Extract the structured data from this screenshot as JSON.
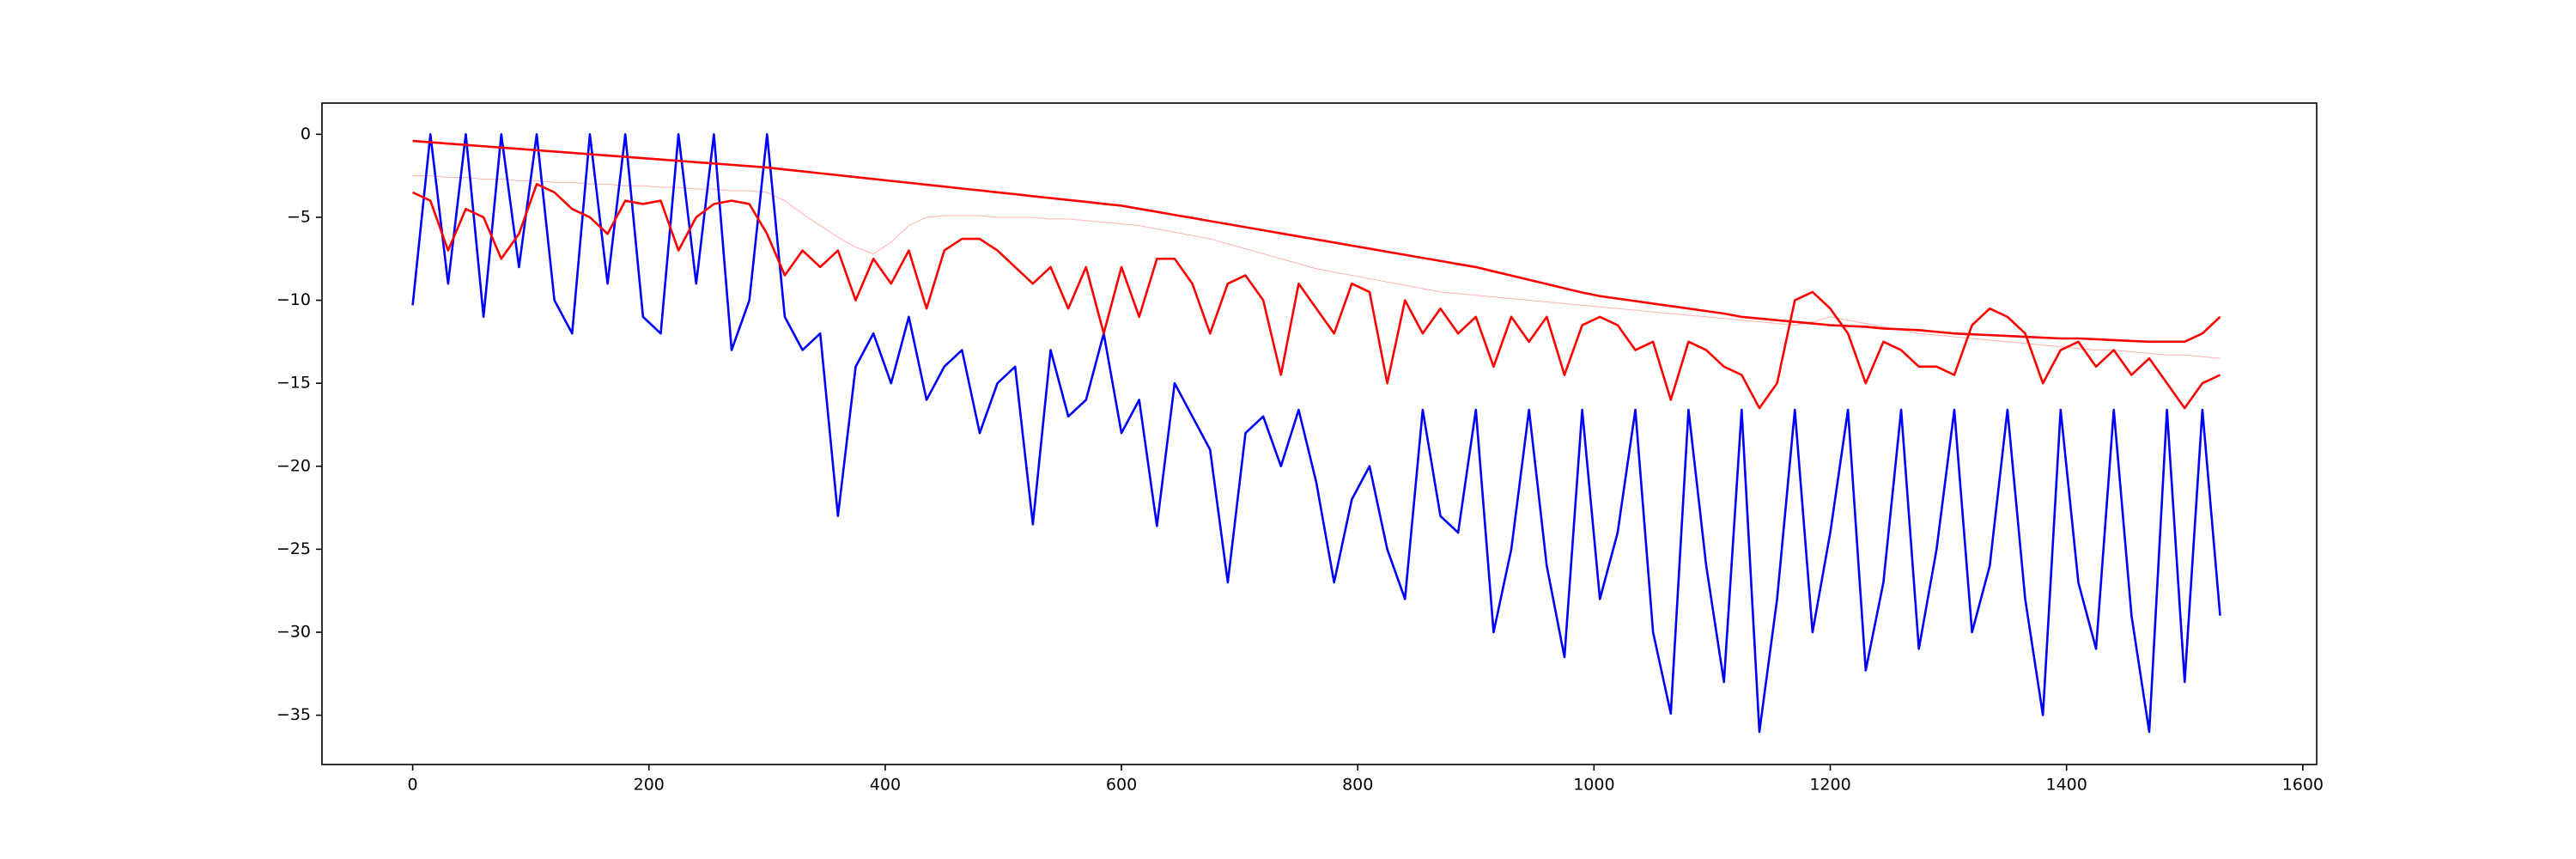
{
  "chart_data": {
    "type": "line",
    "x": [
      0,
      15,
      30,
      45,
      60,
      75,
      90,
      105,
      120,
      135,
      150,
      165,
      180,
      195,
      210,
      225,
      240,
      255,
      270,
      285,
      300,
      315,
      330,
      345,
      360,
      375,
      390,
      405,
      420,
      435,
      450,
      465,
      480,
      495,
      510,
      525,
      540,
      555,
      570,
      585,
      600,
      615,
      630,
      645,
      660,
      675,
      690,
      705,
      720,
      735,
      750,
      765,
      780,
      795,
      810,
      825,
      840,
      855,
      870,
      885,
      900,
      915,
      930,
      945,
      960,
      975,
      990,
      1005,
      1020,
      1035,
      1050,
      1065,
      1080,
      1095,
      1110,
      1125,
      1140,
      1155,
      1170,
      1185,
      1200,
      1215,
      1230,
      1245,
      1260,
      1275,
      1290,
      1305,
      1320,
      1335,
      1350,
      1365,
      1380,
      1395,
      1410,
      1425,
      1440,
      1455,
      1470,
      1485,
      1500,
      1515,
      1530
    ],
    "series": [
      {
        "color": "#ffb0b0",
        "width": 1,
        "values": [
          -2.5,
          -2.5,
          -2.6,
          -2.6,
          -2.7,
          -2.7,
          -2.8,
          -2.8,
          -2.9,
          -2.9,
          -3.0,
          -3.0,
          -3.1,
          -3.1,
          -3.2,
          -3.2,
          -3.3,
          -3.3,
          -3.4,
          -3.4,
          -3.5,
          -4,
          -4.8,
          -5.5,
          -6.2,
          -6.8,
          -7.2,
          -6.5,
          -5.5,
          -5,
          -4.9,
          -4.9,
          -4.9,
          -5,
          -5,
          -5,
          -5.1,
          -5.1,
          -5.2,
          -5.3,
          -5.4,
          -5.5,
          -5.7,
          -5.9,
          -6.1,
          -6.3,
          -6.6,
          -6.9,
          -7.2,
          -7.5,
          -7.8,
          -8.1,
          -8.3,
          -8.5,
          -8.7,
          -8.9,
          -9.1,
          -9.3,
          -9.5,
          -9.6,
          -9.7,
          -9.8,
          -9.9,
          -10,
          -10.1,
          -10.2,
          -10.3,
          -10.4,
          -10.5,
          -10.6,
          -10.7,
          -10.8,
          -10.9,
          -11,
          -11.1,
          -11.2,
          -11.3,
          -11.4,
          -11.5,
          -11.3,
          -11,
          -11.2,
          -11.4,
          -11.6,
          -11.8,
          -12,
          -12.1,
          -12.2,
          -12.3,
          -12.4,
          -12.5,
          -12.6,
          -12.7,
          -12.8,
          -12.9,
          -13,
          -13,
          -13.1,
          -13.2,
          -13.3,
          -13.3,
          -13.4,
          -13.5
        ]
      },
      {
        "color": "#0000ff",
        "width": 2.6,
        "values": [
          -10.3,
          0,
          -9,
          0,
          -11,
          0,
          -8,
          0,
          -10,
          -12,
          0,
          -9,
          0,
          -11,
          -12,
          0,
          -9,
          0,
          -13,
          -10,
          0,
          -11,
          -13,
          -12,
          -23,
          -14,
          -12,
          -15,
          -11,
          -16,
          -14,
          -13,
          -18,
          -15,
          -14,
          -23.5,
          -13,
          -17,
          -16,
          -12,
          -18,
          -16,
          -23.6,
          -15,
          -17,
          -19,
          -27,
          -18,
          -17,
          -20,
          -16.6,
          -21,
          -27,
          -22,
          -20,
          -25,
          -28,
          -16.6,
          -23,
          -24,
          -16.6,
          -30,
          -25,
          -16.6,
          -26,
          -31.5,
          -16.6,
          -28,
          -24,
          -16.6,
          -30,
          -34.9,
          -16.6,
          -26,
          -33,
          -16.6,
          -36,
          -28,
          -16.6,
          -30,
          -24,
          -16.6,
          -32.3,
          -27,
          -16.6,
          -31,
          -25,
          -16.6,
          -30,
          -26,
          -16.6,
          -28,
          -35,
          -16.6,
          -27,
          -31,
          -16.6,
          -29,
          -36,
          -16.6,
          -33,
          -16.6,
          -29
        ]
      },
      {
        "color": "#ff0000",
        "width": 2.6,
        "values": [
          -0.4,
          -0.48,
          -0.56,
          -0.64,
          -0.72,
          -0.8,
          -0.88,
          -0.96,
          -1.04,
          -1.12,
          -1.2,
          -1.28,
          -1.36,
          -1.44,
          -1.52,
          -1.6,
          -1.68,
          -1.76,
          -1.84,
          -1.92,
          -2.0,
          -2.12,
          -2.23,
          -2.35,
          -2.46,
          -2.58,
          -2.69,
          -2.81,
          -2.92,
          -3.04,
          -3.15,
          -3.27,
          -3.38,
          -3.5,
          -3.61,
          -3.73,
          -3.84,
          -3.96,
          -4.07,
          -4.19,
          -4.3,
          -4.49,
          -4.67,
          -4.86,
          -5.04,
          -5.23,
          -5.41,
          -5.6,
          -5.78,
          -5.97,
          -6.15,
          -6.34,
          -6.52,
          -6.71,
          -6.89,
          -7.08,
          -7.26,
          -7.45,
          -7.63,
          -7.82,
          -8.0,
          -8.26,
          -8.51,
          -8.77,
          -9.02,
          -9.28,
          -9.53,
          -9.75,
          -9.9,
          -10.05,
          -10.2,
          -10.35,
          -10.5,
          -10.65,
          -10.8,
          -11.0,
          -11.1,
          -11.2,
          -11.3,
          -11.4,
          -11.5,
          -11.55,
          -11.6,
          -11.7,
          -11.75,
          -11.8,
          -11.9,
          -12,
          -12.05,
          -12.1,
          -12.15,
          -12.2,
          -12.25,
          -12.3,
          -12.3,
          -12.35,
          -12.4,
          -12.45,
          -12.5,
          -12.5,
          -12.5,
          -12.0,
          -11.0
        ]
      },
      {
        "color": "#ff0000",
        "width": 2.6,
        "values": [
          -3.5,
          -4,
          -7,
          -4.5,
          -5,
          -7.5,
          -6,
          -3,
          -3.5,
          -4.5,
          -5,
          -6,
          -4,
          -4.2,
          -4,
          -7,
          -5,
          -4.2,
          -4,
          -4.2,
          -6,
          -8.5,
          -7,
          -8,
          -7,
          -10,
          -7.5,
          -9,
          -7,
          -10.5,
          -7,
          -6.3,
          -6.3,
          -7,
          -8,
          -9,
          -8,
          -10.5,
          -8,
          -12,
          -8,
          -11,
          -7.5,
          -7.5,
          -9,
          -12,
          -9,
          -8.5,
          -10,
          -14.5,
          -9,
          -10.5,
          -12,
          -9,
          -9.5,
          -15,
          -10,
          -12,
          -10.5,
          -12,
          -11,
          -14,
          -11,
          -12.5,
          -11,
          -14.5,
          -11.5,
          -11,
          -11.5,
          -13,
          -12.5,
          -16,
          -12.5,
          -13,
          -14,
          -14.5,
          -16.5,
          -15,
          -10,
          -9.5,
          -10.5,
          -12,
          -15,
          -12.5,
          -13,
          -14,
          -14,
          -14.5,
          -11.5,
          -10.5,
          -11,
          -12,
          -15,
          -13,
          -12.5,
          -14,
          -13,
          -14.5,
          -13.5,
          -15,
          -16.5,
          -15,
          -14.5
        ]
      }
    ],
    "xlim": [
      -76.75,
      1611.75
    ],
    "ylim": [
      -37.97,
      1.88
    ],
    "xticks": [
      0,
      200,
      400,
      600,
      800,
      1000,
      1200,
      1400,
      1600
    ],
    "yticks": [
      {
        "value": -35,
        "label": "−35"
      },
      {
        "value": -30,
        "label": "−30"
      },
      {
        "value": -25,
        "label": "−25"
      },
      {
        "value": -20,
        "label": "−20"
      },
      {
        "value": -15,
        "label": "−15"
      },
      {
        "value": -10,
        "label": "−10"
      },
      {
        "value": -5,
        "label": "−5"
      },
      0
    ],
    "grid": false
  }
}
